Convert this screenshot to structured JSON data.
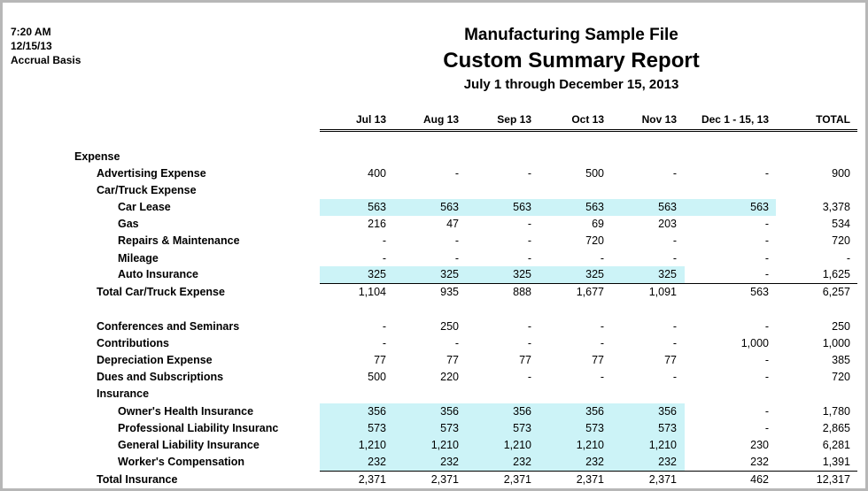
{
  "meta": {
    "time": "7:20 AM",
    "date": "12/15/13",
    "basis": "Accrual Basis"
  },
  "report": {
    "company": "Manufacturing Sample File",
    "title": "Custom Summary Report",
    "range": "July 1 through December 15, 2013"
  },
  "columns": [
    "Jul 13",
    "Aug 13",
    "Sep 13",
    "Oct 13",
    "Nov 13",
    "Dec 1 - 15, 13",
    "TOTAL"
  ],
  "rows": [
    {
      "label": "Expense",
      "indent": 0,
      "values": []
    },
    {
      "label": "Advertising Expense",
      "indent": 1,
      "values": [
        "400",
        "-",
        "-",
        "500",
        "-",
        "-",
        "900"
      ]
    },
    {
      "label": "Car/Truck Expense",
      "indent": 1,
      "values": []
    },
    {
      "label": "Car Lease",
      "indent": 2,
      "values": [
        "563",
        "563",
        "563",
        "563",
        "563",
        "563",
        "3,378"
      ],
      "highlight": 6
    },
    {
      "label": "Gas",
      "indent": 2,
      "values": [
        "216",
        "47",
        "-",
        "69",
        "203",
        "-",
        "534"
      ]
    },
    {
      "label": "Repairs & Maintenance",
      "indent": 2,
      "values": [
        "-",
        "-",
        "-",
        "720",
        "-",
        "-",
        "720"
      ]
    },
    {
      "label": "Mileage",
      "indent": 2,
      "values": [
        "-",
        "-",
        "-",
        "-",
        "-",
        "-",
        "-"
      ]
    },
    {
      "label": "Auto Insurance",
      "indent": 2,
      "values": [
        "325",
        "325",
        "325",
        "325",
        "325",
        "-",
        "1,625"
      ],
      "highlight": 5
    },
    {
      "label": "Total Car/Truck Expense",
      "indent": 1,
      "values": [
        "1,104",
        "935",
        "888",
        "1,677",
        "1,091",
        "563",
        "6,257"
      ],
      "total": true
    },
    {
      "label": "Conferences and Seminars",
      "indent": 1,
      "values": [
        "-",
        "250",
        "-",
        "-",
        "-",
        "-",
        "250"
      ]
    },
    {
      "label": "Contributions",
      "indent": 1,
      "values": [
        "-",
        "-",
        "-",
        "-",
        "-",
        "1,000",
        "1,000"
      ]
    },
    {
      "label": "Depreciation Expense",
      "indent": 1,
      "values": [
        "77",
        "77",
        "77",
        "77",
        "77",
        "-",
        "385"
      ]
    },
    {
      "label": "Dues and Subscriptions",
      "indent": 1,
      "values": [
        "500",
        "220",
        "-",
        "-",
        "-",
        "-",
        "720"
      ]
    },
    {
      "label": "Insurance",
      "indent": 1,
      "values": []
    },
    {
      "label": "Owner's Health Insurance",
      "indent": 2,
      "values": [
        "356",
        "356",
        "356",
        "356",
        "356",
        "-",
        "1,780"
      ],
      "highlight": 5
    },
    {
      "label": "Professional Liability Insuranc",
      "indent": 2,
      "values": [
        "573",
        "573",
        "573",
        "573",
        "573",
        "-",
        "2,865"
      ],
      "highlight": 5
    },
    {
      "label": "General Liability Insurance",
      "indent": 2,
      "values": [
        "1,210",
        "1,210",
        "1,210",
        "1,210",
        "1,210",
        "230",
        "6,281"
      ],
      "highlight": 5
    },
    {
      "label": "Worker's Compensation",
      "indent": 2,
      "values": [
        "232",
        "232",
        "232",
        "232",
        "232",
        "232",
        "1,391"
      ],
      "highlight": 5
    },
    {
      "label": "Total Insurance",
      "indent": 1,
      "values": [
        "2,371",
        "2,371",
        "2,371",
        "2,371",
        "2,371",
        "462",
        "12,317"
      ],
      "total": true
    }
  ]
}
